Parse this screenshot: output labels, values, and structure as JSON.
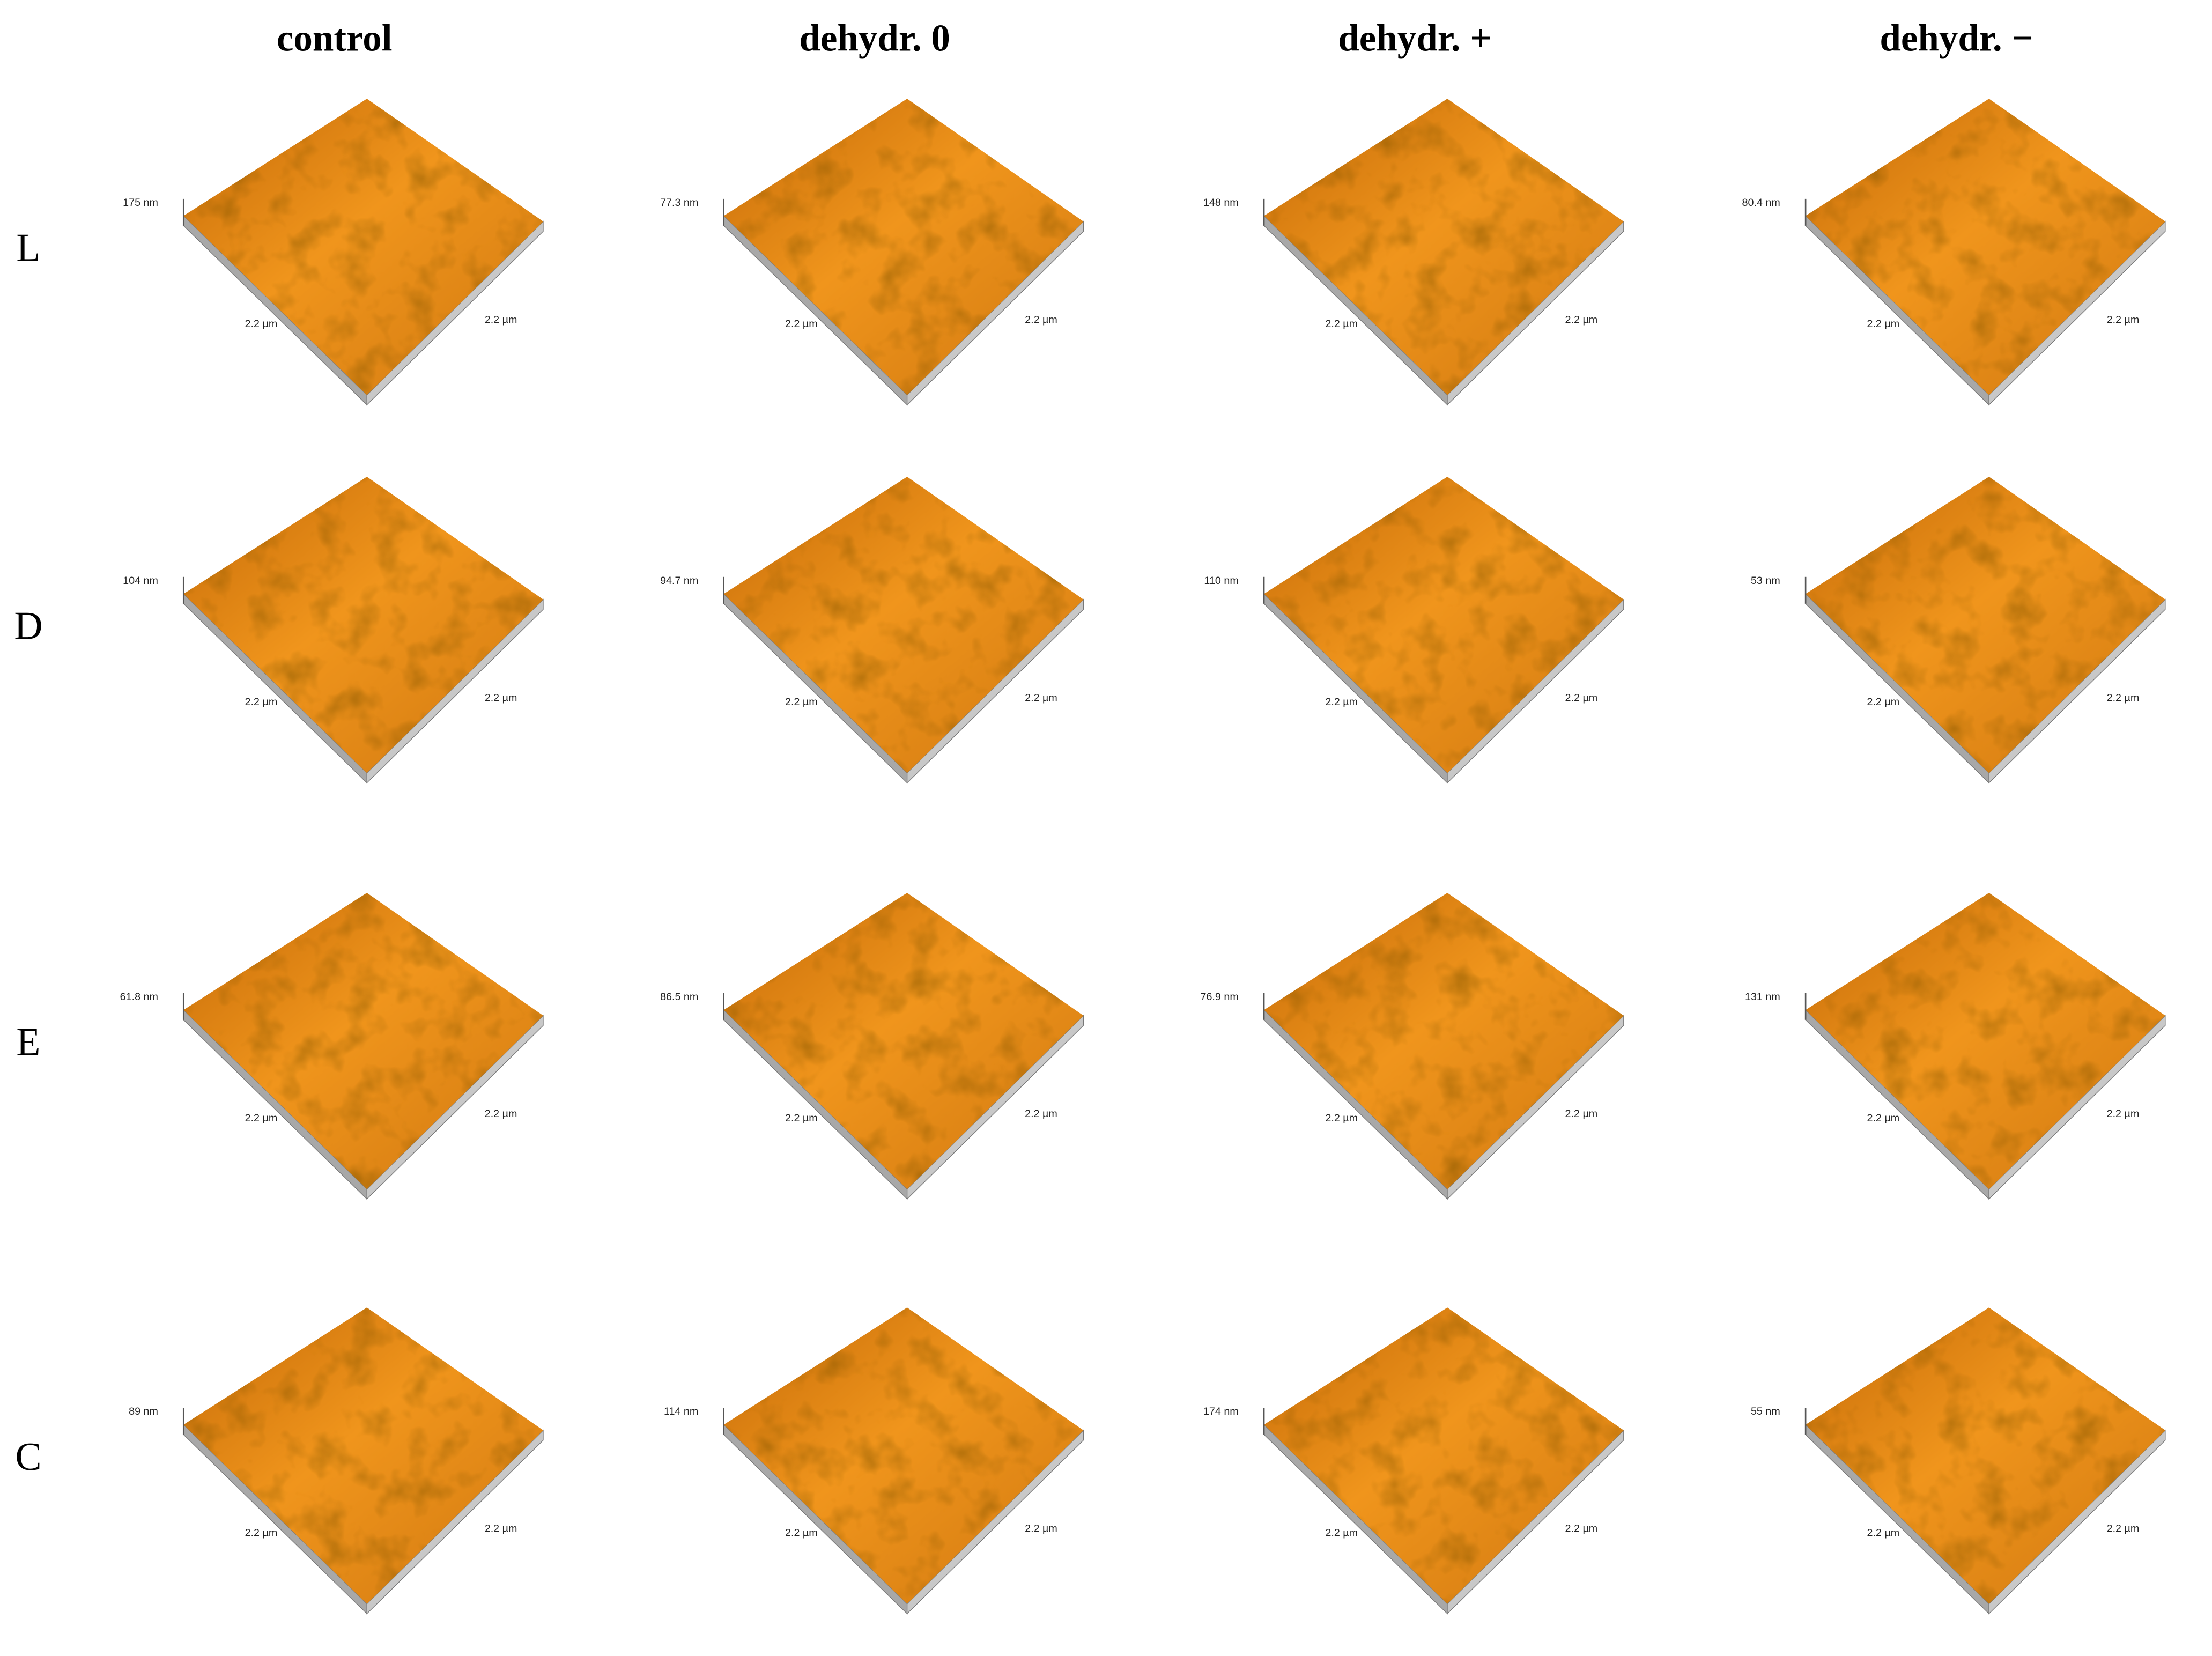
{
  "columns": [
    "control",
    "dehydr. 0",
    "dehydr. +",
    "dehydr. −"
  ],
  "rows": [
    {
      "label": "L",
      "panels": [
        {
          "height": "175 nm",
          "x_label": "2.2 µm",
          "y_label": "2.2 µm"
        },
        {
          "height": "77.3 nm",
          "x_label": "2.2 µm",
          "y_label": "2.2 µm"
        },
        {
          "height": "148 nm",
          "x_label": "2.2 µm",
          "y_label": "2.2 µm"
        },
        {
          "height": "80.4 nm",
          "x_label": "2.2 µm",
          "y_label": "2.2 µm"
        }
      ]
    },
    {
      "label": "D",
      "panels": [
        {
          "height": "104 nm",
          "x_label": "2.2 µm",
          "y_label": "2.2 µm"
        },
        {
          "height": "94.7 nm",
          "x_label": "2.2 µm",
          "y_label": "2.2 µm"
        },
        {
          "height": "110 nm",
          "x_label": "2.2 µm",
          "y_label": "2.2 µm"
        },
        {
          "height": "53 nm",
          "x_label": "2.2 µm",
          "y_label": "2.2 µm"
        }
      ]
    },
    {
      "label": "E",
      "panels": [
        {
          "height": "61.8 nm",
          "x_label": "2.2 µm",
          "y_label": "2.2 µm"
        },
        {
          "height": "86.5 nm",
          "x_label": "2.2 µm",
          "y_label": "2.2 µm"
        },
        {
          "height": "76.9 nm",
          "x_label": "2.2 µm",
          "y_label": "2.2 µm"
        },
        {
          "height": "131 nm",
          "x_label": "2.2 µm",
          "y_label": "2.2 µm"
        }
      ]
    },
    {
      "label": "C",
      "panels": [
        {
          "height": "89 nm",
          "x_label": "2.2 µm",
          "y_label": "2.2 µm"
        },
        {
          "height": "114 nm",
          "x_label": "2.2 µm",
          "y_label": "2.2 µm"
        },
        {
          "height": "174 nm",
          "x_label": "2.2 µm",
          "y_label": "2.2 µm"
        },
        {
          "height": "55 nm",
          "x_label": "2.2 µm",
          "y_label": "2.2 µm"
        }
      ]
    }
  ]
}
